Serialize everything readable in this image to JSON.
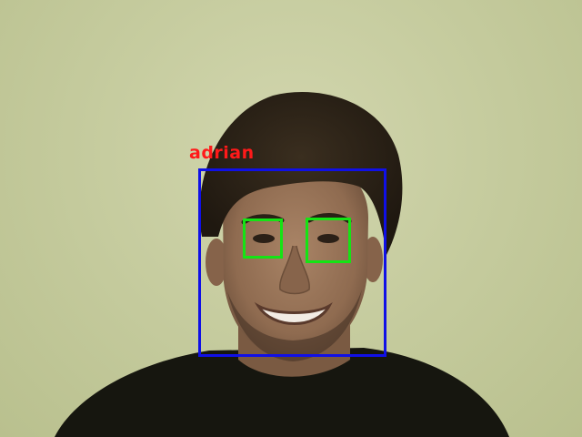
{
  "detection": {
    "name": "adrian",
    "label_color": "#ff1a1a",
    "face_box_color": "#1010e6",
    "eye_box_color": "#14e414",
    "eye_count": 2
  },
  "scene": {
    "background_color": "#c9cfa3",
    "hair_color": "#2e2418",
    "skin_color": "#9a7559",
    "shirt_color": "#15150f"
  }
}
